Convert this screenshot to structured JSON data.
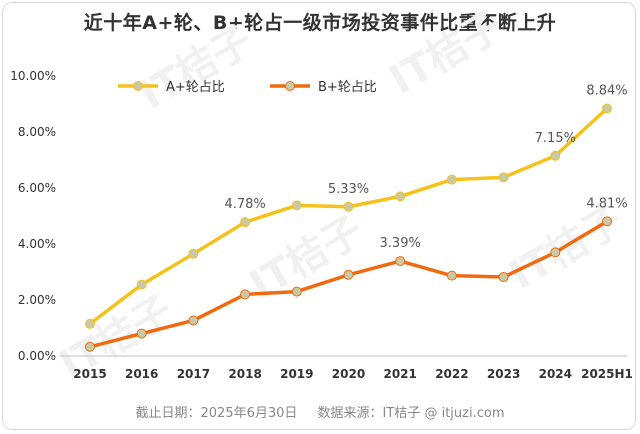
{
  "title": "近十年A+轮、B+轮占一级市场投资事件比重不断上升",
  "footer": {
    "cutoff": "截止日期：2025年6月30日",
    "source": "数据来源：IT桔子 @ itjuzi.com"
  },
  "watermark": "IT桔子",
  "colors": {
    "a_series": "#f5c21b",
    "b_series": "#f06a0f",
    "marker_fill": "#c9c9a8"
  },
  "chart_data": {
    "type": "line",
    "title": "近十年A+轮、B+轮占一级市场投资事件比重不断上升",
    "xlabel": "",
    "ylabel": "",
    "categories": [
      "2015",
      "2016",
      "2017",
      "2018",
      "2019",
      "2020",
      "2021",
      "2022",
      "2023",
      "2024",
      "2025H1"
    ],
    "ylim": [
      0,
      10
    ],
    "yticks": [
      "0.00%",
      "2.00%",
      "4.00%",
      "6.00%",
      "8.00%",
      "10.00%"
    ],
    "grid": false,
    "legend": "top-left",
    "series": [
      {
        "name": "A+轮占比",
        "values": [
          1.15,
          2.55,
          3.65,
          4.78,
          5.38,
          5.33,
          5.7,
          6.3,
          6.38,
          7.15,
          8.84
        ],
        "labels": [
          {
            "index": 3,
            "text": "4.78%"
          },
          {
            "index": 5,
            "text": "5.33%"
          },
          {
            "index": 9,
            "text": "7.15%"
          },
          {
            "index": 10,
            "text": "8.84%"
          }
        ]
      },
      {
        "name": "B+轮占比",
        "values": [
          0.33,
          0.8,
          1.27,
          2.2,
          2.3,
          2.9,
          3.39,
          2.87,
          2.82,
          3.7,
          4.81
        ],
        "labels": [
          {
            "index": 6,
            "text": "3.39%"
          },
          {
            "index": 10,
            "text": "4.81%"
          }
        ]
      }
    ]
  }
}
